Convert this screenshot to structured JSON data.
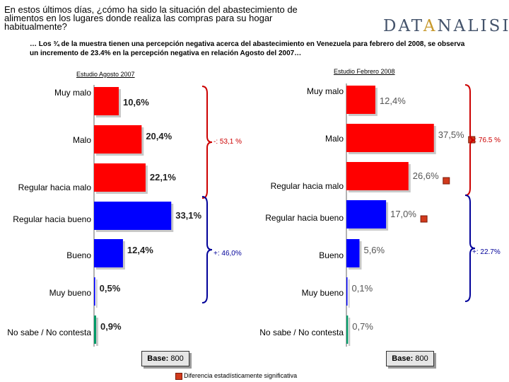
{
  "header": {
    "title": "En estos últimos días, ¿cómo ha sido la situación del abastecimiento de alimentos en los lugares donde realiza las compras para su hogar habitualmente?",
    "subtitle": "… Los ¾ de la muestra tienen una percepción negativa acerca del abastecimiento en Venezuela para febrero del 2008, se observa un incremento de 23.4% en la percepción negativa en relación Agosto del 2007…",
    "logo_pre": "DAT",
    "logo_hi": "A",
    "logo_post": "NALISIS"
  },
  "colors": {
    "negative": "#ff0000",
    "positive": "#0000ff",
    "neutral": "#009966",
    "marker": "#d13a1c",
    "bracket_neg": "#cc0000",
    "bracket_pos": "#000099"
  },
  "chart_data": [
    {
      "type": "bar",
      "orientation": "horizontal",
      "title": "Estudio Agosto 2007",
      "categories": [
        "Muy malo",
        "Malo",
        "Regular hacia malo",
        "Regular hacia bueno",
        "Bueno",
        "Muy bueno",
        "No sabe / No contesta"
      ],
      "values": [
        10.6,
        20.4,
        22.1,
        33.1,
        12.4,
        0.5,
        0.9
      ],
      "labels": [
        "10,6%",
        "20,4%",
        "22,1%",
        "33,1%",
        "12,4%",
        "0,5%",
        "0,9%"
      ],
      "groups": [
        "negative",
        "negative",
        "negative",
        "positive",
        "positive",
        "positive",
        "neutral"
      ],
      "significant": [
        false,
        false,
        false,
        false,
        false,
        false,
        false
      ],
      "bracket_negative": "-: 53,1 %",
      "bracket_positive": "+: 46,0%",
      "base": "800"
    },
    {
      "type": "bar",
      "orientation": "horizontal",
      "title": "Estudio Febrero 2008",
      "categories": [
        "Muy malo",
        "Malo",
        "Regular hacia malo",
        "Regular hacia bueno",
        "Bueno",
        "Muy bueno",
        "No sabe / No contesta"
      ],
      "values": [
        12.4,
        37.5,
        26.6,
        17.0,
        5.6,
        0.1,
        0.7
      ],
      "labels": [
        "12,4%",
        "37,5%",
        "26,6%",
        "17,0%",
        "5,6%",
        "0,1%",
        "0,7%"
      ],
      "groups": [
        "negative",
        "negative",
        "negative",
        "positive",
        "positive",
        "positive",
        "neutral"
      ],
      "significant": [
        false,
        true,
        true,
        true,
        false,
        false,
        false
      ],
      "bracket_negative": "-: 76.5 %",
      "bracket_positive": "+: 22.7%",
      "base": "800"
    }
  ],
  "base_label": "Base:",
  "footnote": "Diferencia estadísticamente significativa"
}
